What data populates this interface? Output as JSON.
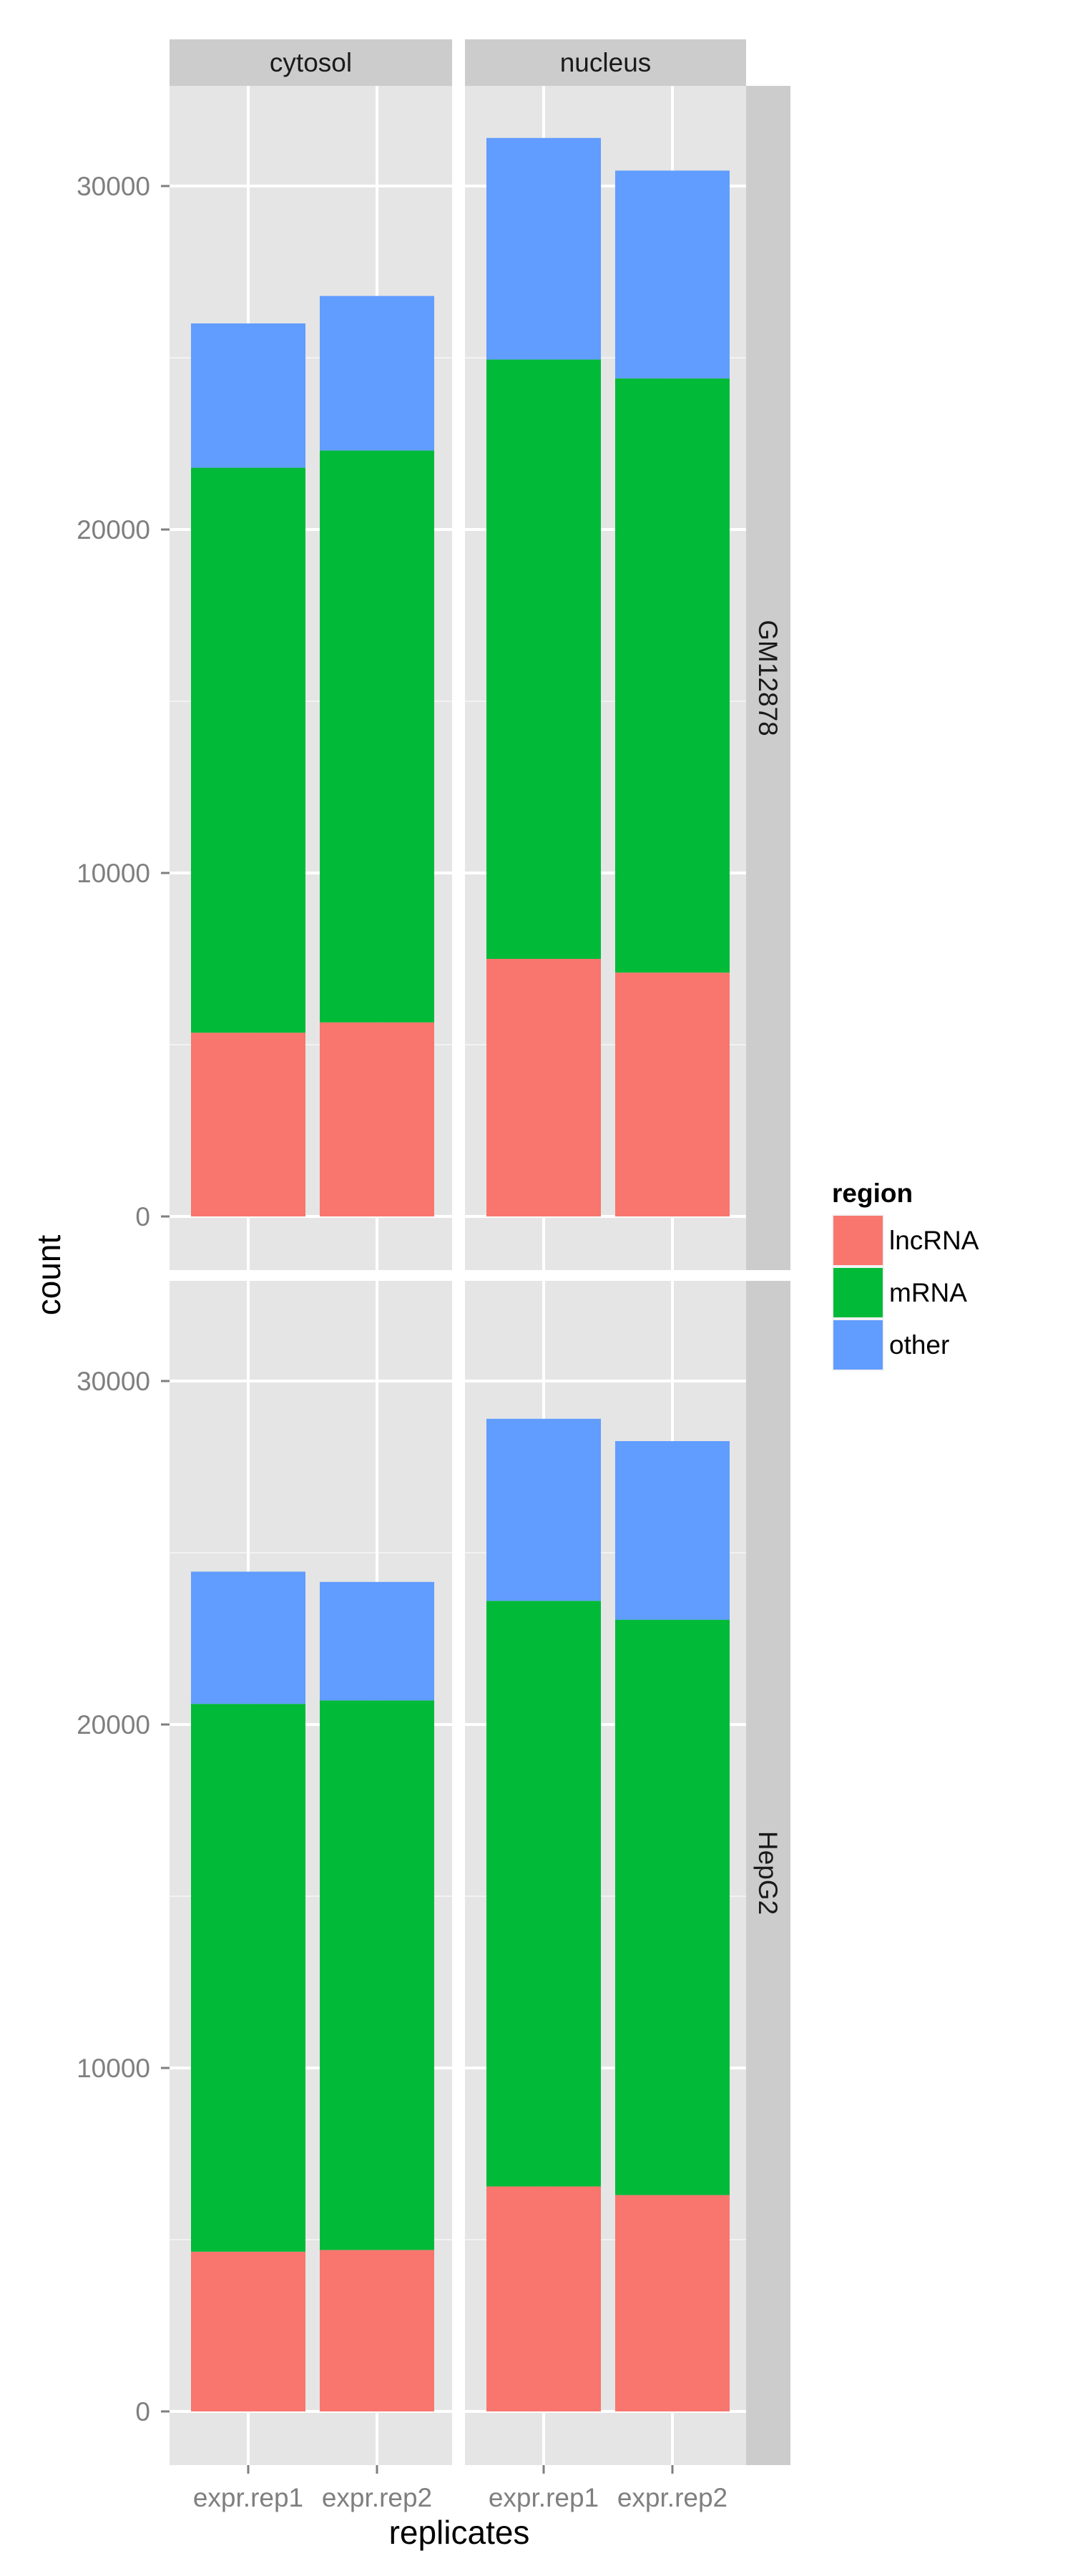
{
  "chart_data": {
    "type": "bar",
    "stacked": true,
    "facet_cols": [
      "cytosol",
      "nucleus"
    ],
    "facet_rows": [
      "GM12878",
      "HepG2"
    ],
    "categories": [
      "expr.rep1",
      "expr.rep2"
    ],
    "xlabel": "replicates",
    "ylabel": "count",
    "ylim": [
      0,
      32500
    ],
    "yticks": [
      0,
      10000,
      20000,
      30000
    ],
    "grid": true,
    "legend": {
      "title": "region",
      "position": "right",
      "entries": [
        {
          "name": "lncRNA",
          "color": "#F8766D"
        },
        {
          "name": "mRNA",
          "color": "#00BA38"
        },
        {
          "name": "other",
          "color": "#619CFF"
        }
      ]
    },
    "panels": [
      {
        "row": "GM12878",
        "col": "cytosol",
        "series": [
          {
            "name": "lncRNA",
            "values": [
              5350,
              5650
            ]
          },
          {
            "name": "mRNA",
            "values": [
              16450,
              16650
            ]
          },
          {
            "name": "other",
            "values": [
              4200,
              4500
            ]
          }
        ]
      },
      {
        "row": "GM12878",
        "col": "nucleus",
        "series": [
          {
            "name": "lncRNA",
            "values": [
              7500,
              7100
            ]
          },
          {
            "name": "mRNA",
            "values": [
              17450,
              17300
            ]
          },
          {
            "name": "other",
            "values": [
              6450,
              6050
            ]
          }
        ]
      },
      {
        "row": "HepG2",
        "col": "cytosol",
        "series": [
          {
            "name": "lncRNA",
            "values": [
              4650,
              4700
            ]
          },
          {
            "name": "mRNA",
            "values": [
              15950,
              16000
            ]
          },
          {
            "name": "other",
            "values": [
              3850,
              3450
            ]
          }
        ]
      },
      {
        "row": "HepG2",
        "col": "nucleus",
        "series": [
          {
            "name": "lncRNA",
            "values": [
              6550,
              6300
            ]
          },
          {
            "name": "mRNA",
            "values": [
              17050,
              16750
            ]
          },
          {
            "name": "other",
            "values": [
              5300,
              5200
            ]
          }
        ]
      }
    ]
  }
}
